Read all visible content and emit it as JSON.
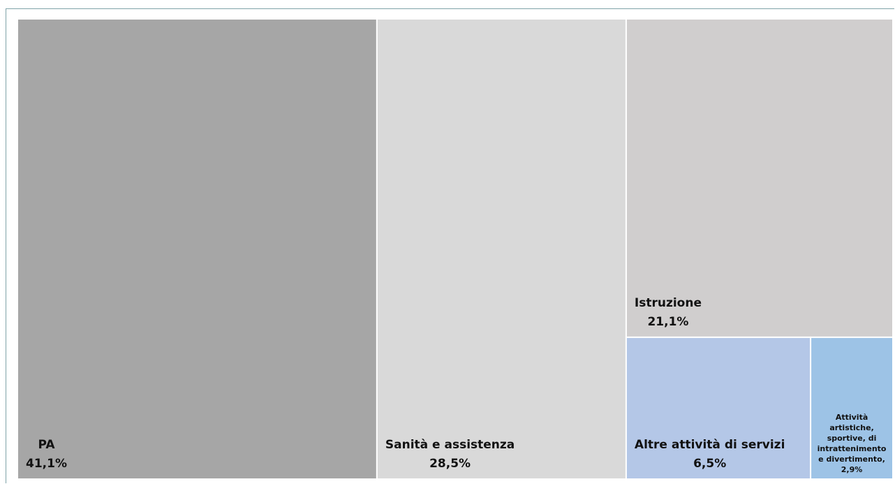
{
  "chart_data": {
    "type": "treemap",
    "categories": [
      "PA",
      "Sanità e assistenza",
      "Istruzione",
      "Altre attività di servizi",
      "Attività artistiche, sportive, di intrattenimento e divertimento,"
    ],
    "values": [
      41.1,
      28.5,
      21.1,
      6.5,
      2.9
    ],
    "value_labels": [
      "41,1%",
      "28,5%",
      "21,1%",
      "6,5%",
      "2,9%"
    ],
    "colors": [
      "#a6a6a6",
      "#d9d9d9",
      "#d0cece",
      "#b4c7e7",
      "#9dc3e6"
    ]
  }
}
